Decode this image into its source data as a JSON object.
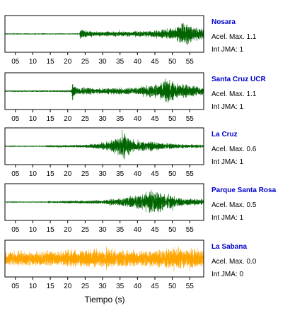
{
  "chart_data": [
    {
      "type": "line",
      "station": "Nosara",
      "accel_label": "Acel. Max. 1.1",
      "jma_label": "Int JMA: 1",
      "series_color": "#006400",
      "x_ticks": [
        "05",
        "10",
        "15",
        "20",
        "25",
        "30",
        "35",
        "40",
        "45",
        "50",
        "55"
      ],
      "x_tick_values": [
        5,
        10,
        15,
        20,
        25,
        30,
        35,
        40,
        45,
        50,
        55
      ],
      "xlim": [
        2,
        59
      ],
      "ylim": [
        -1,
        1
      ],
      "signal": {
        "noise": 0.012,
        "segments": [
          {
            "t": 2,
            "amp": 0.02
          },
          {
            "t": 23.4,
            "amp": 0.02
          },
          {
            "t": 23.6,
            "amp": 0.45
          },
          {
            "t": 26,
            "amp": 0.22
          },
          {
            "t": 35,
            "amp": 0.2
          },
          {
            "t": 44,
            "amp": 0.28
          },
          {
            "t": 50,
            "amp": 0.45
          },
          {
            "t": 54.5,
            "amp": 1.0
          },
          {
            "t": 56,
            "amp": 0.55
          },
          {
            "t": 59,
            "amp": 0.35
          }
        ]
      }
    },
    {
      "type": "line",
      "station": "Santa Cruz UCR",
      "accel_label": "Acel. Max. 1.1",
      "jma_label": "Int JMA: 1",
      "series_color": "#006400",
      "x_ticks": [
        "05",
        "10",
        "15",
        "20",
        "25",
        "30",
        "35",
        "40",
        "45",
        "50",
        "55"
      ],
      "x_tick_values": [
        5,
        10,
        15,
        20,
        25,
        30,
        35,
        40,
        45,
        50,
        55
      ],
      "xlim": [
        2,
        59
      ],
      "ylim": [
        -1,
        1
      ],
      "signal": {
        "noise": 0.03,
        "segments": [
          {
            "t": 2,
            "amp": 0.05
          },
          {
            "t": 15,
            "amp": 0.06
          },
          {
            "t": 21,
            "amp": 0.08
          },
          {
            "t": 21.3,
            "amp": 0.7
          },
          {
            "t": 22.5,
            "amp": 0.3
          },
          {
            "t": 30,
            "amp": 0.22
          },
          {
            "t": 40,
            "amp": 0.3
          },
          {
            "t": 46,
            "amp": 0.6
          },
          {
            "t": 48.5,
            "amp": 1.0
          },
          {
            "t": 51,
            "amp": 0.6
          },
          {
            "t": 59,
            "amp": 0.35
          }
        ]
      }
    },
    {
      "type": "line",
      "station": "La Cruz",
      "accel_label": "Acel. Max. 0.6",
      "jma_label": "Int JMA: 1",
      "series_color": "#006400",
      "x_ticks": [
        "05",
        "10",
        "15",
        "20",
        "25",
        "30",
        "35",
        "40",
        "45",
        "50",
        "55"
      ],
      "x_tick_values": [
        5,
        10,
        15,
        20,
        25,
        30,
        35,
        40,
        45,
        50,
        55
      ],
      "xlim": [
        2,
        59
      ],
      "ylim": [
        -1,
        1
      ],
      "signal": {
        "noise": 0.01,
        "segments": [
          {
            "t": 2,
            "amp": 0.02
          },
          {
            "t": 13.5,
            "amp": 0.03
          },
          {
            "t": 14,
            "amp": 0.08
          },
          {
            "t": 25,
            "amp": 0.12
          },
          {
            "t": 32,
            "amp": 0.35
          },
          {
            "t": 36,
            "amp": 1.0
          },
          {
            "t": 39,
            "amp": 0.5
          },
          {
            "t": 43,
            "amp": 0.4
          },
          {
            "t": 50,
            "amp": 0.2
          },
          {
            "t": 59,
            "amp": 0.12
          }
        ]
      }
    },
    {
      "type": "line",
      "station": "Parque Santa Rosa",
      "accel_label": "Acel. Max. 0.5",
      "jma_label": "Int JMA: 1",
      "series_color": "#006400",
      "x_ticks": [
        "05",
        "10",
        "15",
        "20",
        "25",
        "30",
        "35",
        "40",
        "45",
        "50",
        "55"
      ],
      "x_tick_values": [
        5,
        10,
        15,
        20,
        25,
        30,
        35,
        40,
        45,
        50,
        55
      ],
      "xlim": [
        2,
        59
      ],
      "ylim": [
        -1,
        1
      ],
      "signal": {
        "noise": 0.01,
        "segments": [
          {
            "t": 2,
            "amp": 0.02
          },
          {
            "t": 14,
            "amp": 0.03
          },
          {
            "t": 14.5,
            "amp": 0.08
          },
          {
            "t": 30,
            "amp": 0.15
          },
          {
            "t": 37,
            "amp": 0.4
          },
          {
            "t": 42,
            "amp": 0.75
          },
          {
            "t": 45,
            "amp": 1.0
          },
          {
            "t": 48,
            "amp": 0.6
          },
          {
            "t": 53,
            "amp": 0.3
          },
          {
            "t": 59,
            "amp": 0.2
          }
        ]
      }
    },
    {
      "type": "line",
      "station": "La Sabana",
      "accel_label": "Acel. Max. 0.0",
      "jma_label": "Int JMA: 0",
      "series_color": "#FFA500",
      "x_ticks": [
        "05",
        "10",
        "15",
        "20",
        "25",
        "30",
        "35",
        "40",
        "45",
        "50",
        "55"
      ],
      "x_tick_values": [
        5,
        10,
        15,
        20,
        25,
        30,
        35,
        40,
        45,
        50,
        55
      ],
      "xlim": [
        2,
        59
      ],
      "ylim": [
        -1,
        1
      ],
      "xlabel": "Tiempo (s)",
      "signal": {
        "noise": 0.0,
        "segments": [
          {
            "t": 2,
            "amp": 0.55
          },
          {
            "t": 25,
            "amp": 0.65
          },
          {
            "t": 27,
            "amp": 0.85
          },
          {
            "t": 40,
            "amp": 0.6
          },
          {
            "t": 55,
            "amp": 0.9
          },
          {
            "t": 59,
            "amp": 0.6
          }
        ]
      }
    }
  ],
  "colors": {
    "station_label": "#0000CC",
    "info_text": "#000000",
    "axis": "#000000"
  }
}
